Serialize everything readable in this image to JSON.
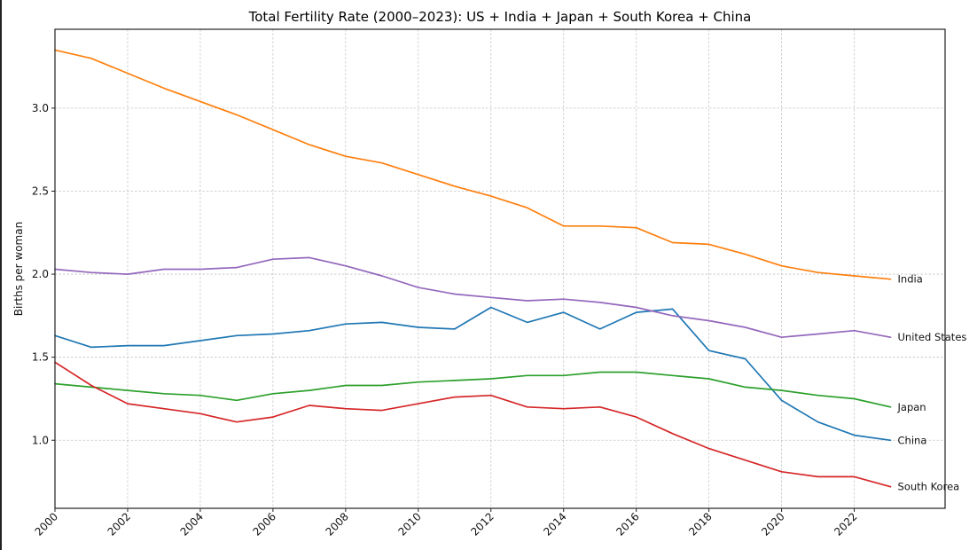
{
  "chart_data": {
    "type": "line",
    "title": "Total Fertility Rate (2000–2023): US + India + Japan + South Korea + China",
    "xlabel": "",
    "ylabel": "Births per woman",
    "xlim": [
      2000,
      2024.5
    ],
    "ylim": [
      0.59,
      3.475
    ],
    "grid": true,
    "legend": "direct-labels-at-line-ends",
    "x": [
      2000,
      2001,
      2002,
      2003,
      2004,
      2005,
      2006,
      2007,
      2008,
      2009,
      2010,
      2011,
      2012,
      2013,
      2014,
      2015,
      2016,
      2017,
      2018,
      2019,
      2020,
      2021,
      2022,
      2023
    ],
    "x_ticks": [
      2000,
      2002,
      2004,
      2006,
      2008,
      2010,
      2012,
      2014,
      2016,
      2018,
      2020,
      2022
    ],
    "x_tick_labels": [
      "2000",
      "2002",
      "2004",
      "2006",
      "2008",
      "2010",
      "2012",
      "2014",
      "2016",
      "2018",
      "2020",
      "2022"
    ],
    "y_ticks": [
      1.0,
      1.5,
      2.0,
      2.5,
      3.0
    ],
    "y_tick_labels": [
      "1.0",
      "1.5",
      "2.0",
      "2.5",
      "3.0"
    ],
    "series": [
      {
        "name": "China",
        "label": "China",
        "color": "#1f77b4",
        "values": [
          1.63,
          1.56,
          1.57,
          1.57,
          1.6,
          1.63,
          1.64,
          1.66,
          1.7,
          1.71,
          1.68,
          1.67,
          1.8,
          1.71,
          1.77,
          1.67,
          1.77,
          1.79,
          1.54,
          1.49,
          1.24,
          1.11,
          1.03,
          1.0
        ]
      },
      {
        "name": "India",
        "label": "India",
        "color": "#ff7f0e",
        "values": [
          3.35,
          3.3,
          3.21,
          3.12,
          3.04,
          2.96,
          2.87,
          2.78,
          2.71,
          2.67,
          2.6,
          2.53,
          2.47,
          2.4,
          2.29,
          2.29,
          2.28,
          2.19,
          2.18,
          2.12,
          2.05,
          2.01,
          1.99,
          1.97
        ]
      },
      {
        "name": "Japan",
        "label": "Japan",
        "color": "#2ca02c",
        "values": [
          1.34,
          1.32,
          1.3,
          1.28,
          1.27,
          1.24,
          1.28,
          1.3,
          1.33,
          1.33,
          1.35,
          1.36,
          1.37,
          1.39,
          1.39,
          1.41,
          1.41,
          1.39,
          1.37,
          1.32,
          1.3,
          1.27,
          1.25,
          1.2
        ]
      },
      {
        "name": "South Korea",
        "label": "South Korea",
        "color": "#d62728",
        "values": [
          1.47,
          1.33,
          1.22,
          1.19,
          1.16,
          1.11,
          1.14,
          1.21,
          1.19,
          1.18,
          1.22,
          1.26,
          1.27,
          1.2,
          1.19,
          1.2,
          1.14,
          1.04,
          0.95,
          0.88,
          0.81,
          0.78,
          0.78,
          0.72
        ]
      },
      {
        "name": "United States",
        "label": "United States",
        "color": "#9467bd",
        "values": [
          2.03,
          2.01,
          2.0,
          2.03,
          2.03,
          2.04,
          2.09,
          2.1,
          2.05,
          1.99,
          1.92,
          1.88,
          1.86,
          1.84,
          1.85,
          1.83,
          1.8,
          1.75,
          1.72,
          1.68,
          1.62,
          1.64,
          1.66,
          1.62
        ]
      }
    ]
  }
}
